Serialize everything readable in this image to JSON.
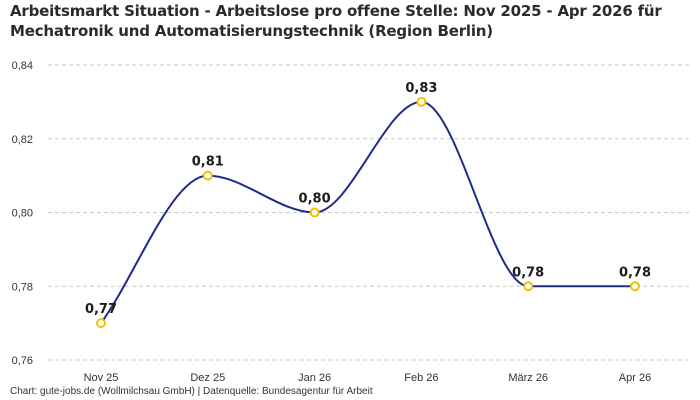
{
  "title": "Arbeitsmarkt Situation - Arbeitslose pro offene Stelle: Nov 2025 - Apr 2026 für Mechatronik und Automatisierungstechnik (Region Berlin)",
  "source": "Chart: gute-jobs.de (Wollmilchsau GmbH) | Datenquelle: Bundesagentur für Arbeit",
  "colors": {
    "line": "#1f2d8a",
    "marker_stroke": "#f2c200",
    "marker_fill": "#ffffff",
    "grid": "#c8c8c8"
  },
  "chart_data": {
    "type": "line",
    "title": "Arbeitsmarkt Situation - Arbeitslose pro offene Stelle: Nov 2025 - Apr 2026 für Mechatronik und Automatisierungstechnik (Region Berlin)",
    "categories": [
      "Nov 25",
      "Dez 25",
      "Jan 26",
      "Feb 26",
      "März 26",
      "Apr 26"
    ],
    "series": [
      {
        "values": [
          0.77,
          0.81,
          0.8,
          0.83,
          0.78,
          0.78
        ],
        "labels": [
          "0,77",
          "0,81",
          "0,80",
          "0,83",
          "0,78",
          "0,78"
        ]
      }
    ],
    "ylim": [
      0.76,
      0.84
    ],
    "yticks": [
      0.76,
      0.78,
      0.8,
      0.82,
      0.84
    ],
    "ytick_labels": [
      "0,76",
      "0,78",
      "0,80",
      "0,82",
      "0,84"
    ],
    "grid": "horizontal dashed",
    "curve": "smooth"
  }
}
